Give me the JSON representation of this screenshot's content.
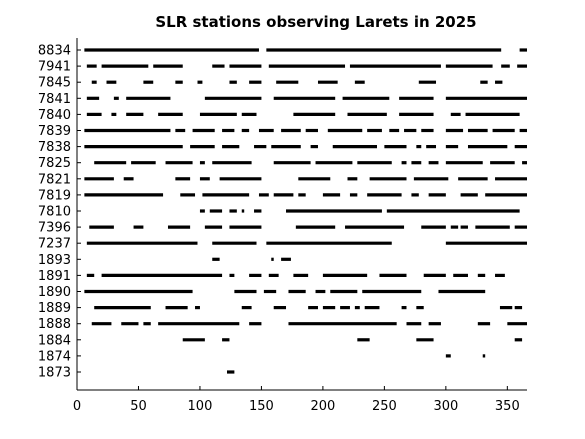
{
  "chart_data": {
    "type": "timeline",
    "title": "SLR stations observing Larets in 2025",
    "xlabel": "",
    "ylabel": "",
    "xlim": [
      0,
      366
    ],
    "xticks": [
      0,
      50,
      100,
      150,
      200,
      250,
      300,
      350
    ],
    "grid": false,
    "legend": "none",
    "bar_color": "#000000",
    "stations": [
      {
        "name": "8834",
        "segments": [
          [
            6,
            148
          ],
          [
            154,
            345
          ],
          [
            360,
            366
          ]
        ]
      },
      {
        "name": "7941",
        "segments": [
          [
            8,
            16
          ],
          [
            20,
            58
          ],
          [
            62,
            86
          ],
          [
            110,
            120
          ],
          [
            124,
            150
          ],
          [
            156,
            218
          ],
          [
            222,
            296
          ],
          [
            300,
            338
          ],
          [
            345,
            352
          ],
          [
            358,
            366
          ]
        ]
      },
      {
        "name": "7845",
        "segments": [
          [
            12,
            16
          ],
          [
            24,
            32
          ],
          [
            54,
            62
          ],
          [
            80,
            86
          ],
          [
            98,
            102
          ],
          [
            124,
            130
          ],
          [
            140,
            150
          ],
          [
            162,
            180
          ],
          [
            196,
            212
          ],
          [
            226,
            234
          ],
          [
            278,
            292
          ],
          [
            328,
            334
          ],
          [
            340,
            346
          ]
        ]
      },
      {
        "name": "7841",
        "segments": [
          [
            8,
            18
          ],
          [
            30,
            34
          ],
          [
            40,
            76
          ],
          [
            104,
            150
          ],
          [
            160,
            210
          ],
          [
            216,
            254
          ],
          [
            262,
            290
          ],
          [
            300,
            366
          ]
        ]
      },
      {
        "name": "7840",
        "segments": [
          [
            8,
            20
          ],
          [
            28,
            32
          ],
          [
            40,
            54
          ],
          [
            66,
            86
          ],
          [
            100,
            130
          ],
          [
            134,
            146
          ],
          [
            176,
            210
          ],
          [
            220,
            252
          ],
          [
            262,
            290
          ],
          [
            304,
            312
          ],
          [
            316,
            360
          ]
        ]
      },
      {
        "name": "7839",
        "segments": [
          [
            6,
            76
          ],
          [
            80,
            88
          ],
          [
            94,
            112
          ],
          [
            118,
            128
          ],
          [
            134,
            140
          ],
          [
            148,
            160
          ],
          [
            166,
            182
          ],
          [
            186,
            196
          ],
          [
            204,
            232
          ],
          [
            236,
            248
          ],
          [
            254,
            262
          ],
          [
            266,
            276
          ],
          [
            280,
            290
          ],
          [
            300,
            314
          ],
          [
            318,
            334
          ],
          [
            338,
            356
          ],
          [
            360,
            366
          ]
        ]
      },
      {
        "name": "7838",
        "segments": [
          [
            6,
            86
          ],
          [
            92,
            112
          ],
          [
            118,
            132
          ],
          [
            144,
            154
          ],
          [
            158,
            182
          ],
          [
            190,
            196
          ],
          [
            208,
            244
          ],
          [
            250,
            268
          ],
          [
            276,
            280
          ],
          [
            284,
            292
          ],
          [
            300,
            310
          ],
          [
            318,
            350
          ],
          [
            356,
            366
          ]
        ]
      },
      {
        "name": "7825",
        "segments": [
          [
            14,
            40
          ],
          [
            44,
            64
          ],
          [
            72,
            94
          ],
          [
            100,
            104
          ],
          [
            110,
            142
          ],
          [
            160,
            190
          ],
          [
            194,
            224
          ],
          [
            228,
            256
          ],
          [
            264,
            268
          ],
          [
            272,
            280
          ],
          [
            286,
            294
          ],
          [
            300,
            330
          ],
          [
            336,
            356
          ],
          [
            362,
            366
          ]
        ]
      },
      {
        "name": "7821",
        "segments": [
          [
            6,
            30
          ],
          [
            38,
            46
          ],
          [
            80,
            92
          ],
          [
            100,
            108
          ],
          [
            116,
            150
          ],
          [
            180,
            206
          ],
          [
            220,
            228
          ],
          [
            238,
            268
          ],
          [
            274,
            302
          ],
          [
            310,
            334
          ],
          [
            340,
            366
          ]
        ]
      },
      {
        "name": "7819",
        "segments": [
          [
            6,
            70
          ],
          [
            84,
            96
          ],
          [
            102,
            140
          ],
          [
            148,
            156
          ],
          [
            160,
            176
          ],
          [
            180,
            186
          ],
          [
            200,
            214
          ],
          [
            222,
            228
          ],
          [
            236,
            264
          ],
          [
            272,
            278
          ],
          [
            286,
            300
          ],
          [
            312,
            326
          ],
          [
            332,
            366
          ]
        ]
      },
      {
        "name": "7810",
        "segments": [
          [
            100,
            104
          ],
          [
            108,
            118
          ],
          [
            124,
            130
          ],
          [
            134,
            136
          ],
          [
            144,
            150
          ],
          [
            170,
            248
          ],
          [
            252,
            360
          ]
        ]
      },
      {
        "name": "7396",
        "segments": [
          [
            10,
            30
          ],
          [
            46,
            54
          ],
          [
            74,
            92
          ],
          [
            104,
            118
          ],
          [
            124,
            150
          ],
          [
            178,
            210
          ],
          [
            218,
            266
          ],
          [
            280,
            300
          ],
          [
            304,
            310
          ],
          [
            312,
            318
          ],
          [
            324,
            352
          ],
          [
            356,
            366
          ]
        ]
      },
      {
        "name": "7237",
        "segments": [
          [
            8,
            98
          ],
          [
            110,
            146
          ],
          [
            154,
            256
          ],
          [
            300,
            366
          ]
        ]
      },
      {
        "name": "1893",
        "segments": [
          [
            110,
            116
          ],
          [
            158,
            160
          ],
          [
            166,
            174
          ]
        ]
      },
      {
        "name": "1891",
        "segments": [
          [
            8,
            14
          ],
          [
            20,
            118
          ],
          [
            124,
            128
          ],
          [
            140,
            150
          ],
          [
            156,
            164
          ],
          [
            176,
            188
          ],
          [
            200,
            236
          ],
          [
            246,
            268
          ],
          [
            282,
            300
          ],
          [
            306,
            318
          ],
          [
            326,
            332
          ],
          [
            340,
            348
          ]
        ]
      },
      {
        "name": "1890",
        "segments": [
          [
            6,
            94
          ],
          [
            128,
            146
          ],
          [
            152,
            162
          ],
          [
            172,
            186
          ],
          [
            194,
            202
          ],
          [
            206,
            228
          ],
          [
            232,
            280
          ],
          [
            294,
            332
          ]
        ]
      },
      {
        "name": "1889",
        "segments": [
          [
            14,
            60
          ],
          [
            72,
            90
          ],
          [
            96,
            100
          ],
          [
            134,
            142
          ],
          [
            160,
            170
          ],
          [
            188,
            196
          ],
          [
            200,
            210
          ],
          [
            214,
            222
          ],
          [
            226,
            230
          ],
          [
            234,
            246
          ],
          [
            264,
            268
          ],
          [
            276,
            282
          ],
          [
            344,
            354
          ],
          [
            356,
            362
          ]
        ]
      },
      {
        "name": "1888",
        "segments": [
          [
            12,
            28
          ],
          [
            36,
            50
          ],
          [
            54,
            60
          ],
          [
            66,
            132
          ],
          [
            140,
            150
          ],
          [
            172,
            260
          ],
          [
            268,
            280
          ],
          [
            286,
            296
          ],
          [
            326,
            336
          ],
          [
            350,
            366
          ]
        ]
      },
      {
        "name": "1884",
        "segments": [
          [
            86,
            104
          ],
          [
            118,
            124
          ],
          [
            228,
            238
          ],
          [
            276,
            290
          ],
          [
            356,
            362
          ]
        ]
      },
      {
        "name": "1874",
        "segments": [
          [
            300,
            304
          ],
          [
            330,
            332
          ]
        ]
      },
      {
        "name": "1873",
        "segments": [
          [
            122,
            128
          ]
        ]
      }
    ]
  }
}
